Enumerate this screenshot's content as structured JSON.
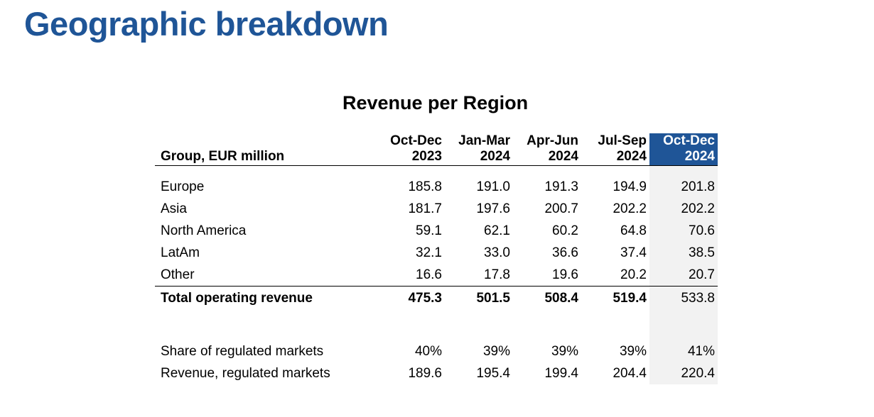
{
  "page": {
    "title": "Geographic breakdown",
    "colors": {
      "title": "#1f5597",
      "highlight_header": "#1f5597",
      "highlight_column": "#f2f2f2"
    }
  },
  "table": {
    "title": "Revenue per Region",
    "label_header": "Group, EUR million",
    "columns": [
      {
        "line1": "Oct-Dec",
        "line2": "2023"
      },
      {
        "line1": "Jan-Mar",
        "line2": "2024"
      },
      {
        "line1": "Apr-Jun",
        "line2": "2024"
      },
      {
        "line1": "Jul-Sep",
        "line2": "2024"
      },
      {
        "line1": "Oct-Dec",
        "line2": "2024"
      }
    ],
    "rows": [
      {
        "label": "Europe",
        "values": [
          "185.8",
          "191.0",
          "191.3",
          "194.9",
          "201.8"
        ]
      },
      {
        "label": "Asia",
        "values": [
          "181.7",
          "197.6",
          "200.7",
          "202.2",
          "202.2"
        ]
      },
      {
        "label": "North America",
        "values": [
          "59.1",
          "62.1",
          "60.2",
          "64.8",
          "70.6"
        ]
      },
      {
        "label": "LatAm",
        "values": [
          "32.1",
          "33.0",
          "36.6",
          "37.4",
          "38.5"
        ]
      },
      {
        "label": "Other",
        "values": [
          "16.6",
          "17.8",
          "19.6",
          "20.2",
          "20.7"
        ]
      }
    ],
    "total": {
      "label": "Total operating revenue",
      "values": [
        "475.3",
        "501.5",
        "508.4",
        "519.4",
        "533.8"
      ]
    },
    "extra_rows": [
      {
        "label": "Share of regulated markets",
        "values": [
          "40%",
          "39%",
          "39%",
          "39%",
          "41%"
        ]
      },
      {
        "label": "Revenue, regulated markets",
        "values": [
          "189.6",
          "195.4",
          "199.4",
          "204.4",
          "220.4"
        ]
      }
    ]
  }
}
